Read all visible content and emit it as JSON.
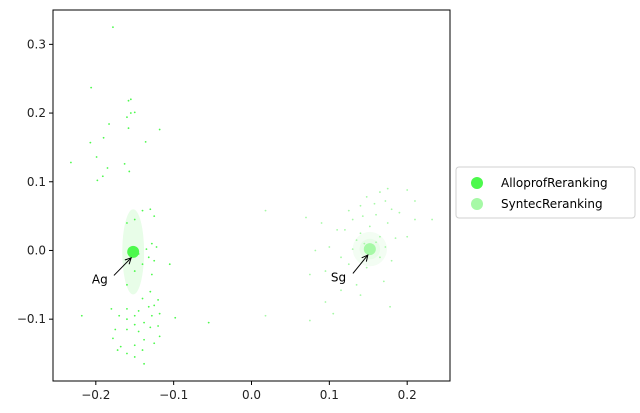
{
  "chart_data": {
    "type": "scatter",
    "xlim": [
      -0.255,
      0.255
    ],
    "ylim": [
      -0.19,
      0.35
    ],
    "x_ticks": [
      -0.2,
      -0.1,
      0.0,
      0.1,
      0.2
    ],
    "x_tick_labels": [
      "−0.2",
      "−0.1",
      "0.0",
      "0.1",
      "0.2"
    ],
    "y_ticks": [
      -0.1,
      0.0,
      0.1,
      0.2,
      0.3
    ],
    "y_tick_labels": [
      "−0.1",
      "0.0",
      "0.1",
      "0.2",
      "0.3"
    ],
    "grid": false,
    "legend_position": "outside-right",
    "series": [
      {
        "name": "AlloprofReranking",
        "color": "#4cf94c",
        "ellipse_color": "#e8fde8",
        "centroid": [
          -0.152,
          -0.002
        ],
        "ellipse_radius": [
          0.014,
          0.062
        ],
        "points": [
          [
            -0.178,
            0.325
          ],
          [
            -0.206,
            0.237
          ],
          [
            -0.155,
            0.22
          ],
          [
            -0.158,
            0.218
          ],
          [
            -0.15,
            0.201
          ],
          [
            -0.155,
            0.2
          ],
          [
            -0.16,
            0.194
          ],
          [
            -0.183,
            0.184
          ],
          [
            -0.118,
            0.176
          ],
          [
            -0.158,
            0.178
          ],
          [
            -0.207,
            0.157
          ],
          [
            -0.19,
            0.164
          ],
          [
            -0.136,
            0.158
          ],
          [
            -0.199,
            0.136
          ],
          [
            -0.232,
            0.128
          ],
          [
            -0.163,
            0.126
          ],
          [
            -0.185,
            0.12
          ],
          [
            -0.157,
            0.115
          ],
          [
            -0.191,
            0.108
          ],
          [
            -0.198,
            0.102
          ],
          [
            -0.13,
            0.06
          ],
          [
            -0.14,
            0.058
          ],
          [
            -0.125,
            0.05
          ],
          [
            -0.15,
            0.045
          ],
          [
            -0.16,
            0.04
          ],
          [
            -0.128,
            0.01
          ],
          [
            -0.122,
            0.005
          ],
          [
            -0.135,
            0.002
          ],
          [
            -0.145,
            -0.005
          ],
          [
            -0.132,
            -0.01
          ],
          [
            -0.125,
            -0.015
          ],
          [
            -0.105,
            -0.02
          ],
          [
            -0.14,
            -0.02
          ],
          [
            -0.15,
            -0.03
          ],
          [
            -0.128,
            -0.035
          ],
          [
            -0.16,
            -0.05
          ],
          [
            -0.13,
            -0.06
          ],
          [
            -0.14,
            -0.07
          ],
          [
            -0.12,
            -0.072
          ],
          [
            -0.125,
            -0.08
          ],
          [
            -0.132,
            -0.082
          ],
          [
            -0.16,
            -0.085
          ],
          [
            -0.145,
            -0.088
          ],
          [
            -0.18,
            -0.085
          ],
          [
            -0.118,
            -0.092
          ],
          [
            -0.15,
            -0.095
          ],
          [
            -0.128,
            -0.095
          ],
          [
            -0.218,
            -0.095
          ],
          [
            -0.17,
            -0.095
          ],
          [
            -0.16,
            -0.1
          ],
          [
            -0.098,
            -0.098
          ],
          [
            -0.138,
            -0.105
          ],
          [
            -0.15,
            -0.108
          ],
          [
            -0.12,
            -0.11
          ],
          [
            -0.13,
            -0.112
          ],
          [
            -0.16,
            -0.115
          ],
          [
            -0.175,
            -0.115
          ],
          [
            -0.145,
            -0.118
          ],
          [
            -0.118,
            -0.125
          ],
          [
            -0.178,
            -0.128
          ],
          [
            -0.138,
            -0.13
          ],
          [
            -0.125,
            -0.135
          ],
          [
            -0.15,
            -0.138
          ],
          [
            -0.14,
            -0.145
          ],
          [
            -0.172,
            -0.145
          ],
          [
            -0.16,
            -0.15
          ],
          [
            -0.15,
            -0.155
          ],
          [
            -0.138,
            -0.165
          ],
          [
            -0.055,
            -0.105
          ],
          [
            -0.168,
            -0.14
          ]
        ],
        "annotation": {
          "text": "Ag",
          "xy": [
            -0.152,
            -0.002
          ],
          "xytext": [
            -0.205,
            -0.048
          ]
        }
      },
      {
        "name": "SyntecReranking",
        "color": "#a6f9a6",
        "ellipse_color": "#f3fdf3",
        "centroid": [
          0.152,
          0.002
        ],
        "ellipse_radius": [
          0.022,
          0.025
        ],
        "points": [
          [
            0.175,
            0.09
          ],
          [
            0.165,
            0.085
          ],
          [
            0.2,
            0.088
          ],
          [
            0.148,
            0.078
          ],
          [
            0.172,
            0.072
          ],
          [
            0.21,
            0.072
          ],
          [
            0.158,
            0.068
          ],
          [
            0.14,
            0.065
          ],
          [
            0.18,
            0.06
          ],
          [
            0.125,
            0.058
          ],
          [
            0.19,
            0.055
          ],
          [
            0.16,
            0.052
          ],
          [
            0.143,
            0.05
          ],
          [
            0.13,
            0.045
          ],
          [
            0.21,
            0.045
          ],
          [
            0.232,
            0.045
          ],
          [
            0.175,
            0.04
          ],
          [
            0.152,
            0.035
          ],
          [
            0.12,
            0.03
          ],
          [
            0.14,
            0.025
          ],
          [
            0.165,
            0.02
          ],
          [
            0.185,
            0.018
          ],
          [
            0.135,
            0.015
          ],
          [
            0.2,
            0.02
          ],
          [
            0.018,
            0.058
          ],
          [
            0.07,
            0.048
          ],
          [
            0.09,
            0.04
          ],
          [
            0.11,
            0.03
          ],
          [
            0.145,
            0.01
          ],
          [
            0.16,
            0.012
          ],
          [
            0.172,
            0.005
          ],
          [
            0.13,
            0.002
          ],
          [
            0.1,
            0.005
          ],
          [
            0.082,
            0.0
          ],
          [
            0.115,
            -0.01
          ],
          [
            0.165,
            -0.01
          ],
          [
            0.18,
            -0.015
          ],
          [
            0.125,
            -0.02
          ],
          [
            0.148,
            -0.025
          ],
          [
            0.095,
            -0.03
          ],
          [
            0.075,
            -0.035
          ],
          [
            0.17,
            -0.045
          ],
          [
            0.135,
            -0.05
          ],
          [
            0.115,
            -0.058
          ],
          [
            0.14,
            -0.065
          ],
          [
            0.095,
            -0.075
          ],
          [
            0.178,
            -0.082
          ],
          [
            0.105,
            -0.092
          ],
          [
            0.075,
            -0.102
          ],
          [
            0.018,
            -0.095
          ]
        ],
        "annotation": {
          "text": "Sg",
          "xy": [
            0.152,
            0.002
          ],
          "xytext": [
            0.102,
            -0.045
          ]
        }
      }
    ]
  }
}
